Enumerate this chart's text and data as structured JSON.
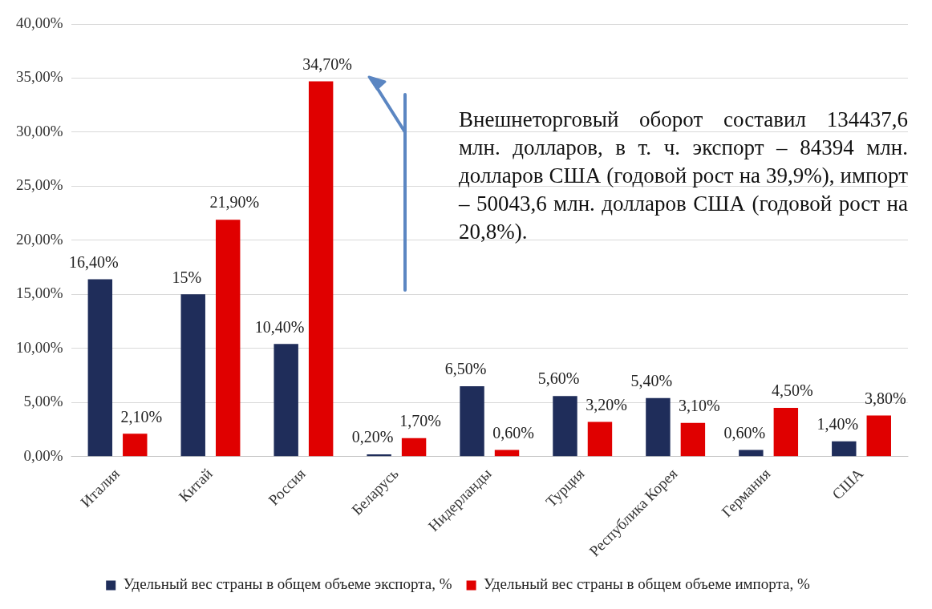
{
  "chart_data": {
    "type": "bar",
    "categories": [
      "Италия",
      "Китай",
      "Россия",
      "Беларусь",
      "Нидерланды",
      "Турция",
      "Республика Корея",
      "Германия",
      "США"
    ],
    "series": [
      {
        "name": "Удельный вес страны в общем объеме экспорта, %",
        "color": "#1f2d5a",
        "values": [
          16.4,
          15,
          10.4,
          0.2,
          6.5,
          5.6,
          5.4,
          0.6,
          1.4
        ],
        "value_labels": [
          "16,40%",
          "15%",
          "10,40%",
          "0,20%",
          "6,50%",
          "5,60%",
          "5,40%",
          "0,60%",
          "1,40%"
        ]
      },
      {
        "name": "Удельный вес страны в общем объеме импорта, %",
        "color": "#e00000",
        "values": [
          2.1,
          21.9,
          34.7,
          1.7,
          0.6,
          3.2,
          3.1,
          4.5,
          3.8
        ],
        "value_labels": [
          "2,10%",
          "21,90%",
          "34,70%",
          "1,70%",
          "0,60%",
          "3,20%",
          "3,10%",
          "4,50%",
          "3,80%"
        ]
      }
    ],
    "ylim": [
      0,
      40
    ],
    "yticks": [
      {
        "value": 0,
        "label": "0,00%"
      },
      {
        "value": 5,
        "label": "5,00%"
      },
      {
        "value": 10,
        "label": "10,00%"
      },
      {
        "value": 15,
        "label": "15,00%"
      },
      {
        "value": 20,
        "label": "20,00%"
      },
      {
        "value": 25,
        "label": "25,00%"
      },
      {
        "value": 30,
        "label": "30,00%"
      },
      {
        "value": 35,
        "label": "35,00%"
      },
      {
        "value": 40,
        "label": "40,00%"
      }
    ],
    "grid": "y",
    "legend": "bottom",
    "annotations": [
      "Внешнеторговый оборот составил 134437,6 млн. долларов, в т. ч. экспорт – 84394 млн. долларов США (годовой рост на 39,9%), импорт – 50043,6 млн. долларов США (годовой рост на 20,8%)."
    ]
  }
}
